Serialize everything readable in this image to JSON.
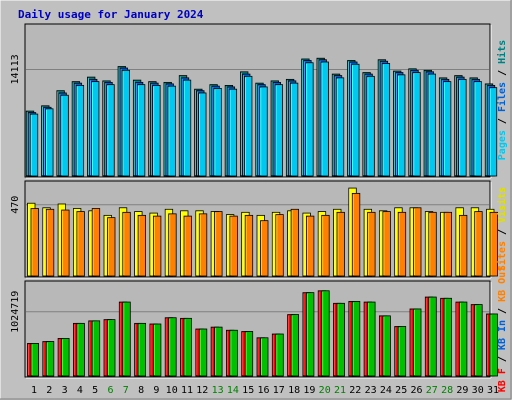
{
  "title": "Daily usage for January 2024",
  "colors": {
    "background": "#c0c0c0",
    "panel": "#b8b8b8",
    "title": "#0000c0",
    "pages": "#00c8f0",
    "files": "#0060d8",
    "hits": "#008080",
    "visits": "#ffff00",
    "sites": "#ff8000",
    "kb_out": "#ff8000",
    "kb_in": "#00c000",
    "kb_f": "#ff0000",
    "weekend_day": "#008000",
    "weekday_day": "#000000"
  },
  "side_labels": {
    "top": [
      {
        "text": "Pages",
        "color": "#00c8f0"
      },
      {
        "text": " / ",
        "color": "#000000"
      },
      {
        "text": "Files",
        "color": "#0060d8"
      },
      {
        "text": " / ",
        "color": "#000000"
      },
      {
        "text": "Hits",
        "color": "#008080"
      }
    ],
    "middle": [
      {
        "text": "Sites",
        "color": "#ff8000"
      },
      {
        "text": " / ",
        "color": "#000000"
      },
      {
        "text": "Visits",
        "color": "#e0e000"
      }
    ],
    "bottom": [
      {
        "text": "KB F",
        "color": "#ff0000"
      },
      {
        "text": " / ",
        "color": "#000000"
      },
      {
        "text": "KB In",
        "color": "#0060d8"
      },
      {
        "text": " / ",
        "color": "#000000"
      },
      {
        "text": "KB Out",
        "color": "#ff8000"
      }
    ]
  },
  "chart_data": [
    {
      "type": "bar",
      "panel": "hits-files-pages",
      "ytick": "14113",
      "ylim": [
        0,
        20000
      ],
      "categories": [
        "1",
        "2",
        "3",
        "4",
        "5",
        "6",
        "7",
        "8",
        "9",
        "10",
        "11",
        "12",
        "13",
        "14",
        "15",
        "16",
        "17",
        "18",
        "19",
        "20",
        "21",
        "22",
        "23",
        "24",
        "25",
        "26",
        "27",
        "28",
        "29",
        "30",
        "31"
      ],
      "weekend": [
        "6",
        "7",
        "13",
        "14",
        "20",
        "21",
        "27",
        "28"
      ],
      "series": [
        {
          "name": "Hits",
          "values": [
            8600,
            9300,
            11300,
            12500,
            13100,
            12600,
            14500,
            12700,
            12500,
            12400,
            13300,
            11500,
            12100,
            12000,
            13800,
            12300,
            12600,
            12800,
            15500,
            15600,
            13500,
            15300,
            13700,
            15400,
            13900,
            14200,
            14000,
            13000,
            13300,
            13000,
            12200
          ]
        },
        {
          "name": "Files",
          "values": [
            8400,
            9100,
            11000,
            12300,
            12800,
            12400,
            14300,
            12400,
            12300,
            12200,
            13000,
            11300,
            11900,
            11800,
            13500,
            12100,
            12400,
            12600,
            15300,
            15400,
            13300,
            15100,
            13500,
            15200,
            13700,
            14000,
            13800,
            12800,
            13100,
            12800,
            12000
          ]
        },
        {
          "name": "Pages",
          "values": [
            8200,
            8900,
            10700,
            12000,
            12500,
            12100,
            14000,
            12100,
            12000,
            11900,
            12700,
            11000,
            11600,
            11500,
            13200,
            11800,
            12100,
            12300,
            15000,
            15100,
            13000,
            14800,
            13200,
            14900,
            13400,
            13700,
            13500,
            12500,
            12800,
            12500,
            11700
          ]
        }
      ]
    },
    {
      "type": "bar",
      "panel": "visits-sites",
      "ytick": "470",
      "ylim": [
        0,
        620
      ],
      "categories": [
        "1",
        "2",
        "3",
        "4",
        "5",
        "6",
        "7",
        "8",
        "9",
        "10",
        "11",
        "12",
        "13",
        "14",
        "15",
        "16",
        "17",
        "18",
        "19",
        "20",
        "21",
        "22",
        "23",
        "24",
        "25",
        "26",
        "27",
        "28",
        "29",
        "30",
        "31"
      ],
      "series": [
        {
          "name": "Visits",
          "values": [
            480,
            450,
            475,
            445,
            430,
            400,
            450,
            425,
            415,
            440,
            430,
            430,
            425,
            405,
            420,
            400,
            420,
            430,
            415,
            425,
            440,
            580,
            440,
            430,
            450,
            450,
            425,
            420,
            450,
            450,
            440
          ]
        },
        {
          "name": "Sites",
          "values": [
            445,
            440,
            435,
            425,
            445,
            385,
            420,
            400,
            395,
            410,
            395,
            410,
            425,
            395,
            400,
            365,
            405,
            440,
            395,
            400,
            420,
            545,
            420,
            425,
            420,
            450,
            420,
            420,
            400,
            425,
            420
          ]
        }
      ]
    },
    {
      "type": "bar",
      "panel": "kbytes",
      "ytick": "1024719",
      "ylim": [
        0,
        1500000
      ],
      "categories": [
        "1",
        "2",
        "3",
        "4",
        "5",
        "6",
        "7",
        "8",
        "9",
        "10",
        "11",
        "12",
        "13",
        "14",
        "15",
        "16",
        "17",
        "18",
        "19",
        "20",
        "21",
        "22",
        "23",
        "24",
        "25",
        "26",
        "27",
        "28",
        "29",
        "30",
        "31"
      ],
      "series": [
        {
          "name": "KB F",
          "values": [
            520000,
            550000,
            600000,
            840000,
            880000,
            900000,
            1180000,
            840000,
            830000,
            930000,
            920000,
            750000,
            780000,
            730000,
            710000,
            610000,
            670000,
            980000,
            1330000,
            1360000,
            1160000,
            1190000,
            1180000,
            960000,
            790000,
            1070000,
            1260000,
            1240000,
            1180000,
            1140000,
            990000
          ]
        },
        {
          "name": "KB In",
          "values": [
            520000,
            550000,
            600000,
            840000,
            880000,
            900000,
            1180000,
            840000,
            830000,
            930000,
            920000,
            750000,
            780000,
            730000,
            710000,
            610000,
            670000,
            980000,
            1330000,
            1360000,
            1160000,
            1190000,
            1180000,
            960000,
            790000,
            1070000,
            1260000,
            1240000,
            1180000,
            1140000,
            990000
          ]
        }
      ]
    }
  ]
}
